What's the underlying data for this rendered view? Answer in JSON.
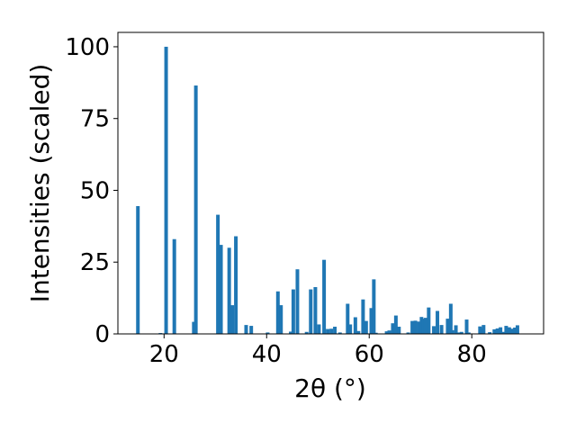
{
  "chart_data": {
    "type": "bar",
    "title": "",
    "xlabel": "2θ (°)",
    "ylabel": "Intensities (scaled)",
    "xlim": [
      11,
      94
    ],
    "ylim": [
      0,
      105
    ],
    "x_ticks": [
      20,
      40,
      60,
      80
    ],
    "y_ticks": [
      0,
      25,
      50,
      75,
      100
    ],
    "grid": false,
    "color": "#1f77b4",
    "bar_width": 0.7,
    "x": [
      14.9,
      19.3,
      20.4,
      22.0,
      25.8,
      26.2,
      30.5,
      31.1,
      32.7,
      33.3,
      34.0,
      36.0,
      37.0,
      40.2,
      42.2,
      42.8,
      44.7,
      45.2,
      46.0,
      47.8,
      48.6,
      49.5,
      50.2,
      51.2,
      51.9,
      52.6,
      53.3,
      54.3,
      55.8,
      56.3,
      57.3,
      57.9,
      58.8,
      59.4,
      60.4,
      60.9,
      61.3,
      63.4,
      63.9,
      64.6,
      65.2,
      65.8,
      67.6,
      68.4,
      69.0,
      69.7,
      70.2,
      70.6,
      71.0,
      71.6,
      72.6,
      73.3,
      74.1,
      75.3,
      75.9,
      76.2,
      76.9,
      77.4,
      78.0,
      79.0,
      79.4,
      81.6,
      82.0,
      82.3,
      83.5,
      84.4,
      85.0,
      85.6,
      86.1,
      86.7,
      87.3,
      87.9,
      88.4,
      88.9
    ],
    "values": [
      44.5,
      0.3,
      100.0,
      33.0,
      4.2,
      86.5,
      41.5,
      31.0,
      30.0,
      10.0,
      34.0,
      3.1,
      2.8,
      0.5,
      14.8,
      10.0,
      0.8,
      15.5,
      22.5,
      0.7,
      15.5,
      16.3,
      3.3,
      25.8,
      1.7,
      1.8,
      2.5,
      0.5,
      10.5,
      3.3,
      5.8,
      1.0,
      12.0,
      4.5,
      9.0,
      19.0,
      0.4,
      0.9,
      1.2,
      3.7,
      6.4,
      2.5,
      0.5,
      4.5,
      4.6,
      4.3,
      5.9,
      5.3,
      5.6,
      9.2,
      2.7,
      8.0,
      3.1,
      5.3,
      10.5,
      1.3,
      3.0,
      0.5,
      0.7,
      5.0,
      0.5,
      2.6,
      2.0,
      3.1,
      0.6,
      1.6,
      1.9,
      2.3,
      0.7,
      2.8,
      2.3,
      1.8,
      2.2,
      3.0
    ]
  }
}
